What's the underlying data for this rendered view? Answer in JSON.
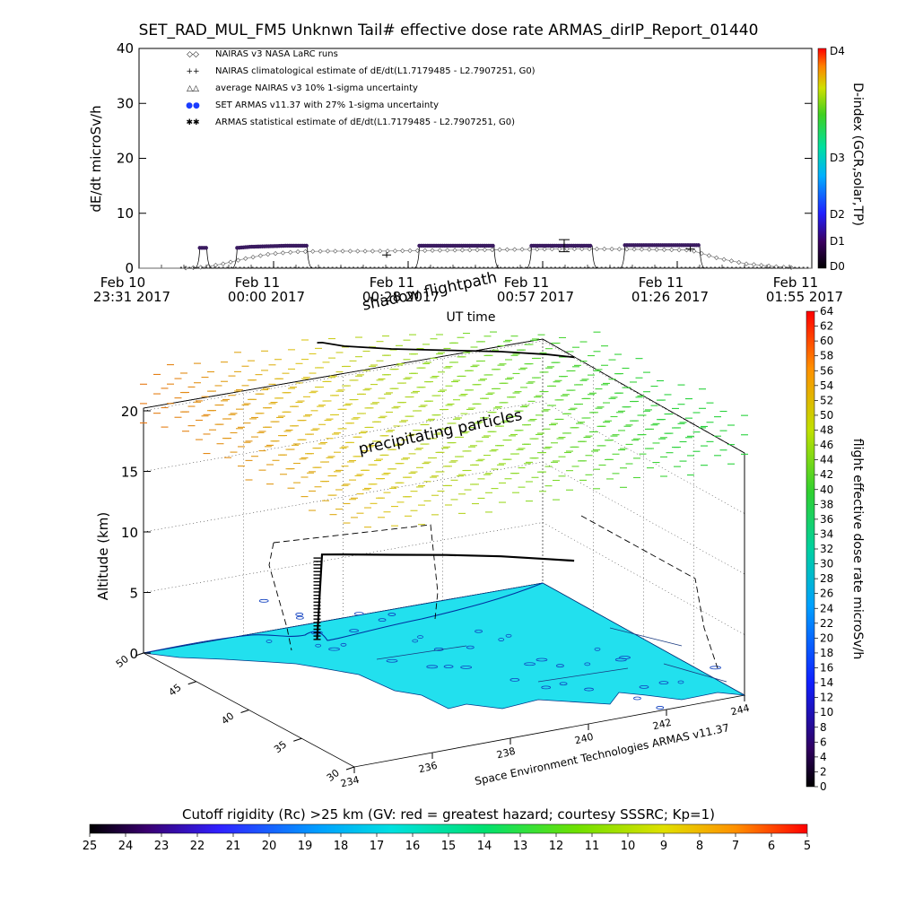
{
  "chart_data": [
    {
      "type": "line",
      "title": "SET_RAD_MUL_FM5 Unknwn Tail#  effective dose rate ARMAS_dirIP_Report_01440",
      "ylabel": "dE/dt microSv/h",
      "xlabel": "UT time",
      "ylim": [
        0,
        40
      ],
      "yticks": [
        0,
        10,
        20,
        30,
        40
      ],
      "xtick_labels": [
        {
          "line1": "Feb 10",
          "line2": "23:31 2017"
        },
        {
          "line1": "Feb 11",
          "line2": "00:00 2017"
        },
        {
          "line1": "Feb 11",
          "line2": "00:28 2017"
        },
        {
          "line1": "Feb 11",
          "line2": "00:57 2017"
        },
        {
          "line1": "Feb 11",
          "line2": "01:26 2017"
        },
        {
          "line1": "Feb 11",
          "line2": "01:55 2017"
        }
      ],
      "legend": [
        {
          "symbol": "◇◇",
          "label": "NAIRAS v3 NASA LaRC runs"
        },
        {
          "symbol": "++",
          "label": "NAIRAS climatological estimate of dE/dt(L1.7179485 - L2.7907251, G0)"
        },
        {
          "symbol": "△△",
          "label": "average NAIRAS v3 10% 1-sigma uncertainty"
        },
        {
          "symbol": "●●",
          "label": "SET ARMAS v11.37 with 27% 1-sigma uncertainty"
        },
        {
          "symbol": "✱✱",
          "label": "ARMAS statistical estimate of dE/dt(L1.7179485 - L2.7907251, G0)"
        }
      ],
      "series": [
        {
          "name": "NAIRAS v3 NASA LaRC runs",
          "x_minutes": [
            0,
            9,
            14,
            18,
            23,
            28,
            34,
            40,
            50,
            60,
            70,
            80,
            90,
            100,
            110,
            118,
            124,
            130,
            136,
            140,
            144
          ],
          "values": [
            0,
            0,
            0.2,
            0.8,
            1.8,
            2.6,
            3.0,
            3.1,
            3.1,
            3.2,
            3.3,
            3.4,
            3.5,
            3.5,
            3.4,
            3.3,
            1.8,
            0.8,
            0.3,
            0.1,
            0
          ]
        },
        {
          "name": "SET ARMAS v11.37 with 27% 1-sigma uncertainty",
          "segments": [
            {
              "x_minutes": [
                13,
                14.5
              ],
              "values": [
                3.7,
                3.7
              ]
            },
            {
              "x_minutes": [
                21,
                24,
                28,
                32,
                36
              ],
              "values": [
                3.7,
                3.9,
                4.0,
                4.1,
                4.1
              ]
            },
            {
              "x_minutes": [
                60,
                76
              ],
              "values": [
                4.1,
                4.1
              ]
            },
            {
              "x_minutes": [
                84,
                97
              ],
              "values": [
                4.1,
                4.1
              ]
            },
            {
              "x_minutes": [
                104,
                120
              ],
              "values": [
                4.2,
                4.2
              ]
            }
          ],
          "error_bar": {
            "x_minutes": 91,
            "values": [
              3.0,
              3.5,
              5.2
            ]
          }
        },
        {
          "name": "NAIRAS climatological estimate",
          "points": [
            {
              "x_minutes": 53,
              "value": 2.4
            },
            {
              "x_minutes": 118,
              "value": 3.5
            }
          ]
        }
      ],
      "colorbar": {
        "label": "D-index (GCR,solar,TP)",
        "tick_labels": [
          "D4",
          "D3",
          "D2",
          "D1",
          "D0"
        ]
      }
    },
    {
      "type": "scatter",
      "subtype": "3d-trajectory",
      "zlabel": "Altitude (km)",
      "zticks": [
        0,
        5,
        10,
        15,
        20
      ],
      "x_ticks": [
        234,
        236,
        238,
        240,
        242,
        244
      ],
      "y_ticks": [
        30,
        35,
        40,
        45,
        50
      ],
      "annotations": [
        "shadow flightpath",
        "precipitating particles",
        "Space Environment Technologies ARMAS v11.37"
      ],
      "flight_track": {
        "longitude": [
          237.8,
          237.9,
          238.2,
          239.0,
          240.0,
          241.0,
          241.8,
          242.2
        ],
        "latitude": [
          47.6,
          47.5,
          46.5,
          45.0,
          43.5,
          42.0,
          40.5,
          39.5
        ],
        "altitude_km": [
          0,
          7,
          7.3,
          7.5,
          7.6,
          7.6,
          7.6,
          7.7
        ]
      },
      "colorbar": {
        "label": "flight effective dose rate microSv/h",
        "min": 0,
        "max": 64,
        "step": 2
      },
      "cutoff_rigidity_bar": {
        "label": "Cutoff rigidity (Rc) >25 km (GV: red = greatest hazard; courtesy SSSRC; Kp=1)",
        "tick_labels": [
          "25",
          "24",
          "23",
          "22",
          "21",
          "20",
          "19",
          "18",
          "17",
          "16",
          "15",
          "14",
          "13",
          "12",
          "11",
          "10",
          "9",
          "8",
          "7",
          "6",
          "5"
        ]
      }
    }
  ]
}
